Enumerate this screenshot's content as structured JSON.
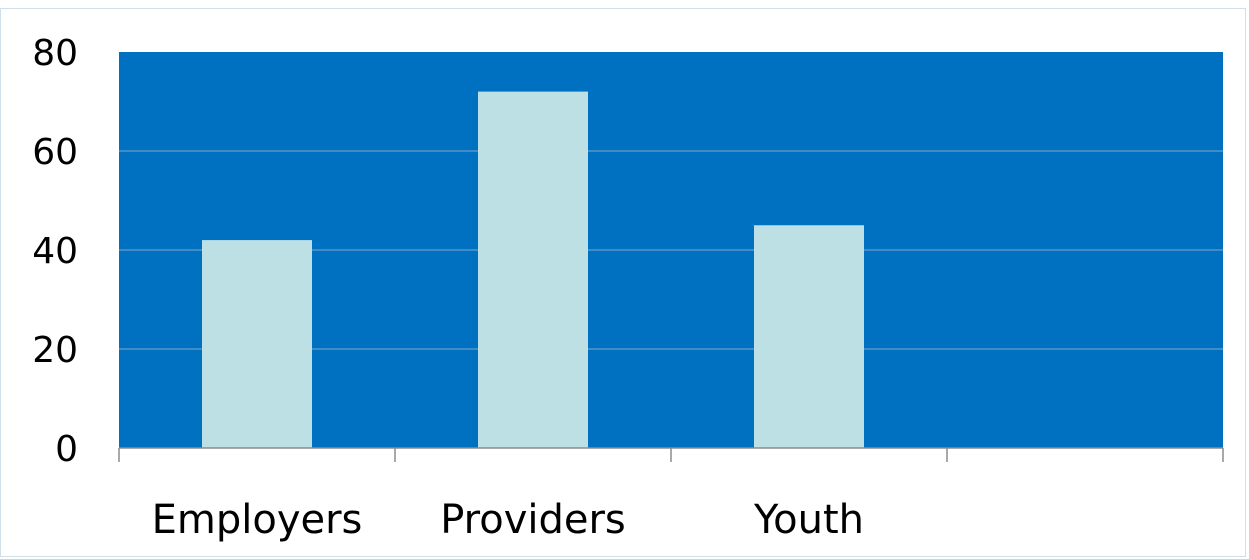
{
  "chart_data": {
    "type": "bar",
    "categories": [
      "Employers",
      "Providers",
      "Youth",
      ""
    ],
    "values": [
      42,
      72,
      45,
      null
    ],
    "title": "",
    "xlabel": "",
    "ylabel": "",
    "ylim": [
      0,
      80
    ],
    "yticks": [
      "0",
      "20",
      "40",
      "60",
      "80"
    ],
    "grid": true,
    "legend": "none",
    "colors": {
      "plot_background": "#0070C0",
      "bar": "#BDE0E5",
      "gridline": "#7FA8C9",
      "axis": "#8c8c8c"
    }
  }
}
